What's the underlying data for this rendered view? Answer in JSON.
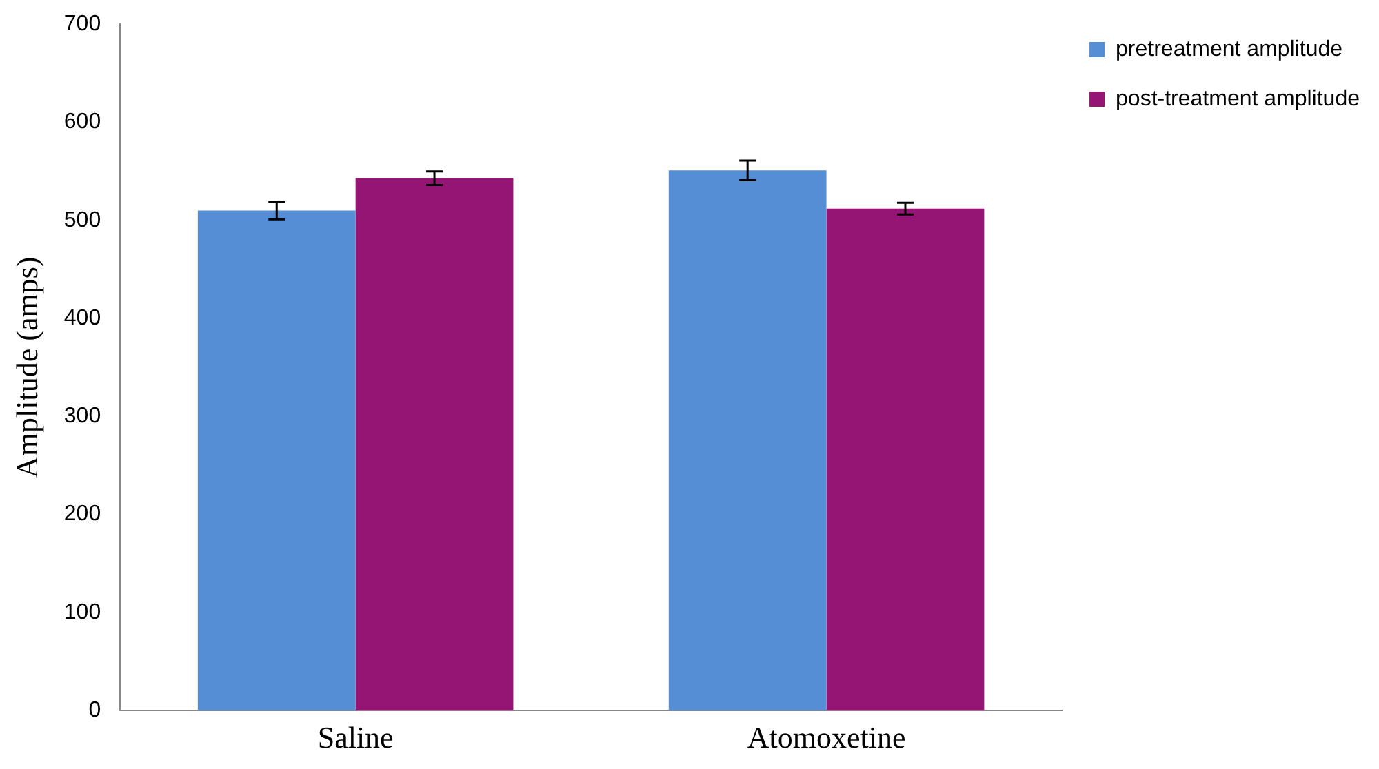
{
  "chart_data": {
    "type": "bar",
    "categories": [
      "Saline",
      "Atomoxetine"
    ],
    "series": [
      {
        "name": "pretreatment amplitude",
        "color": "#558ed5",
        "values": [
          510,
          551
        ],
        "errors": [
          9,
          10
        ]
      },
      {
        "name": "post-treatment amplitude",
        "color": "#951574",
        "values": [
          543,
          512
        ],
        "errors": [
          7,
          6
        ]
      }
    ],
    "ylabel": "Amplitude (amps)",
    "ylim": [
      0,
      700
    ],
    "yticks": [
      0,
      100,
      200,
      300,
      400,
      500,
      600,
      700
    ],
    "grid": false,
    "legend": "top right"
  }
}
